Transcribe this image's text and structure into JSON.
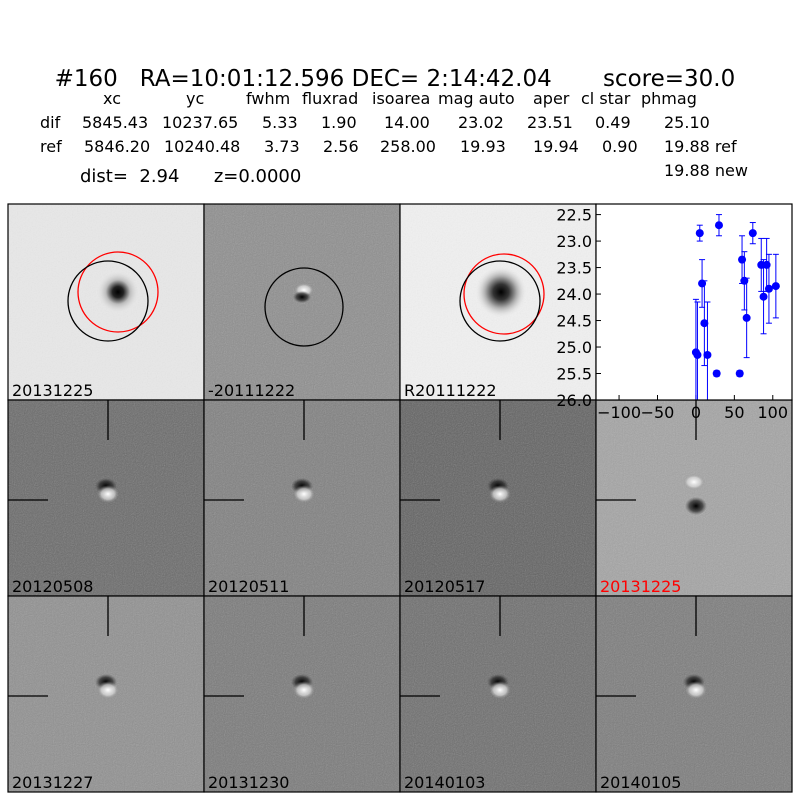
{
  "header": {
    "id": "#160",
    "ra": "RA=10:01:12.596",
    "dec": "DEC= 2:14:42.04",
    "score": "score=30.0"
  },
  "table": {
    "columns": [
      "xc",
      "yc",
      "fwhm",
      "fluxrad",
      "isoarea",
      "mag auto",
      "aper",
      "cl star",
      "phmag"
    ],
    "rows": [
      {
        "label": "dif",
        "values": [
          "5845.43",
          "10237.65",
          "5.33",
          "1.90",
          "14.00",
          "23.02",
          "23.51",
          "0.49",
          "25.10"
        ]
      },
      {
        "label": "ref",
        "values": [
          "5846.20",
          "10240.48",
          "3.73",
          "2.56",
          "258.00",
          "19.93",
          "19.94",
          "0.90",
          "19.88 ref"
        ]
      }
    ],
    "extra": "19.88 new"
  },
  "dist_line": {
    "dist": "dist=  2.94",
    "z": "z=0.0000"
  },
  "tiles": [
    {
      "label": "20131225",
      "kind": "science"
    },
    {
      "label": "-20111222",
      "kind": "diff-neg"
    },
    {
      "label": "R20111222",
      "kind": "reference"
    },
    {
      "label": "20120508",
      "kind": "stamp"
    },
    {
      "label": "20120511",
      "kind": "stamp"
    },
    {
      "label": "20120517",
      "kind": "stamp"
    },
    {
      "label": "20131225",
      "kind": "stamp",
      "color": "#ff0000"
    },
    {
      "label": "20131227",
      "kind": "stamp"
    },
    {
      "label": "20131230",
      "kind": "stamp"
    },
    {
      "label": "20140103",
      "kind": "stamp"
    },
    {
      "label": "20140105",
      "kind": "stamp"
    }
  ],
  "chart_data": {
    "type": "scatter",
    "title": "",
    "xlabel": "",
    "ylabel": "",
    "xlim": [
      -130,
      125
    ],
    "ylim": [
      26.0,
      22.3
    ],
    "y_inverted": true,
    "x_ticks": [
      "−100",
      "−50",
      "0",
      "50",
      "100"
    ],
    "x_tick_values": [
      -100,
      -50,
      0,
      50,
      100
    ],
    "y_ticks": [
      "22.5",
      "23.0",
      "23.5",
      "24.0",
      "24.5",
      "25.0",
      "25.5",
      "26.0"
    ],
    "y_tick_values": [
      22.5,
      23.0,
      23.5,
      24.0,
      24.5,
      25.0,
      25.5,
      26.0
    ],
    "marker_color": "#0000ff",
    "points": [
      {
        "x": 0,
        "y": 25.1,
        "err": 1.0
      },
      {
        "x": 2,
        "y": 25.15,
        "err": 1.0
      },
      {
        "x": 5,
        "y": 22.85,
        "err": 0.15
      },
      {
        "x": 8,
        "y": 23.8,
        "err": 0.45
      },
      {
        "x": 11,
        "y": 24.55,
        "err": 0.8
      },
      {
        "x": 15,
        "y": 25.15,
        "err": 1.0
      },
      {
        "x": 27,
        "y": 25.5,
        "err": 0.05
      },
      {
        "x": 30,
        "y": 22.7,
        "err": 0.2
      },
      {
        "x": 57,
        "y": 25.5,
        "err": 0.05
      },
      {
        "x": 60,
        "y": 23.35,
        "err": 0.45
      },
      {
        "x": 63,
        "y": 23.75,
        "err": 0.55
      },
      {
        "x": 66,
        "y": 24.45,
        "err": 0.75
      },
      {
        "x": 74,
        "y": 22.85,
        "err": 0.2
      },
      {
        "x": 85,
        "y": 23.45,
        "err": 0.5
      },
      {
        "x": 88,
        "y": 24.05,
        "err": 0.7
      },
      {
        "x": 92,
        "y": 23.45,
        "err": 0.5
      },
      {
        "x": 95,
        "y": 23.9,
        "err": 0.65
      },
      {
        "x": 104,
        "y": 23.85,
        "err": 0.6
      }
    ]
  }
}
